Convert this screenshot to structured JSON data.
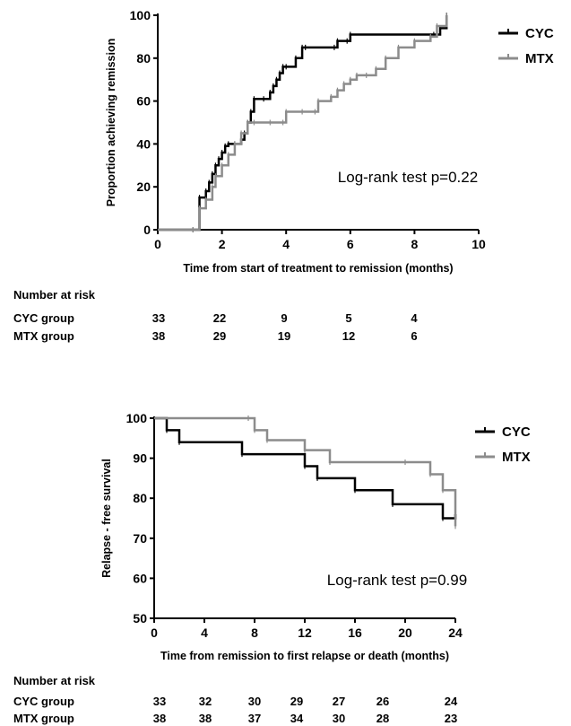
{
  "chart_data": [
    {
      "type": "line",
      "subtype": "kaplan-meier-step",
      "title": "",
      "xlabel": "Time from start of treatment to remission (months)",
      "ylabel": "Proportion achieving remission",
      "xlim": [
        0,
        10
      ],
      "ylim": [
        0,
        100
      ],
      "xticks": [
        0,
        2,
        4,
        6,
        8,
        10
      ],
      "yticks": [
        0,
        20,
        40,
        60,
        80,
        100
      ],
      "grid": false,
      "legend_position": "top-right",
      "annotation": "Log-rank test p=0.22",
      "series": [
        {
          "name": "CYC",
          "color": "#000000",
          "x": [
            0,
            1.1,
            1.3,
            1.5,
            1.6,
            1.7,
            1.8,
            1.9,
            2.0,
            2.1,
            2.2,
            2.4,
            2.6,
            2.7,
            2.8,
            2.9,
            3.0,
            3.3,
            3.5,
            3.6,
            3.7,
            3.8,
            3.9,
            4.0,
            4.3,
            4.5,
            4.6,
            5.5,
            5.6,
            5.9,
            6.0,
            8.6,
            8.8,
            9.0
          ],
          "y": [
            0,
            0,
            15,
            18,
            22,
            26,
            30,
            33,
            36,
            39,
            40,
            40,
            42,
            45,
            50,
            55,
            61,
            61,
            64,
            67,
            70,
            73,
            76,
            76,
            80,
            85,
            85,
            85,
            88,
            88,
            91,
            91,
            94,
            100
          ]
        },
        {
          "name": "MTX",
          "color": "#8c8c8c",
          "x": [
            0,
            1.1,
            1.3,
            1.5,
            1.7,
            1.8,
            2.0,
            2.2,
            2.4,
            2.6,
            2.8,
            3.0,
            3.5,
            3.9,
            4.0,
            4.5,
            4.9,
            5.0,
            5.4,
            5.6,
            5.8,
            6.0,
            6.2,
            6.5,
            6.8,
            7.1,
            7.5,
            8.0,
            8.5,
            8.7,
            9.0
          ],
          "y": [
            0,
            0,
            10,
            14,
            20,
            25,
            30,
            35,
            40,
            45,
            50,
            50,
            50,
            50,
            55,
            55,
            55,
            60,
            62,
            65,
            68,
            70,
            72,
            72,
            75,
            80,
            85,
            88,
            90,
            95,
            100
          ]
        }
      ],
      "number_at_risk": {
        "heading": "Number at risk",
        "rows": [
          {
            "label": "CYC group",
            "values": [
              "33",
              "22",
              "9",
              "5",
              "4"
            ]
          },
          {
            "label": "MTX group",
            "values": [
              "38",
              "29",
              "19",
              "12",
              "6"
            ]
          }
        ]
      }
    },
    {
      "type": "line",
      "subtype": "kaplan-meier-step",
      "title": "",
      "xlabel": "Time from remission to first relapse or death (months)",
      "ylabel": "Relapse - free survival",
      "xlim": [
        0,
        24
      ],
      "ylim": [
        50,
        100
      ],
      "xticks": [
        0,
        4,
        8,
        12,
        16,
        20,
        24
      ],
      "yticks": [
        50,
        60,
        70,
        80,
        90,
        100
      ],
      "grid": false,
      "legend_position": "top-right",
      "annotation": "Log-rank test p=0.99",
      "series": [
        {
          "name": "CYC",
          "color": "#000000",
          "x": [
            0,
            1,
            2,
            7,
            12,
            13,
            16,
            19,
            23,
            24
          ],
          "y": [
            100,
            97,
            94,
            91,
            88,
            85,
            82,
            78.5,
            75,
            76
          ]
        },
        {
          "name": "MTX",
          "color": "#8c8c8c",
          "x": [
            0,
            7.5,
            8,
            9,
            12,
            14,
            20,
            22,
            23,
            24
          ],
          "y": [
            100,
            100,
            97,
            94.5,
            92,
            89,
            89,
            86,
            82,
            73
          ]
        }
      ],
      "number_at_risk": {
        "heading": "Number at risk",
        "rows": [
          {
            "label": "CYC group",
            "values": [
              "33",
              "32",
              "30",
              "29",
              "27",
              "26",
              "24"
            ]
          },
          {
            "label": "MTX group",
            "values": [
              "38",
              "38",
              "37",
              "34",
              "30",
              "28",
              "23"
            ]
          }
        ]
      }
    }
  ]
}
